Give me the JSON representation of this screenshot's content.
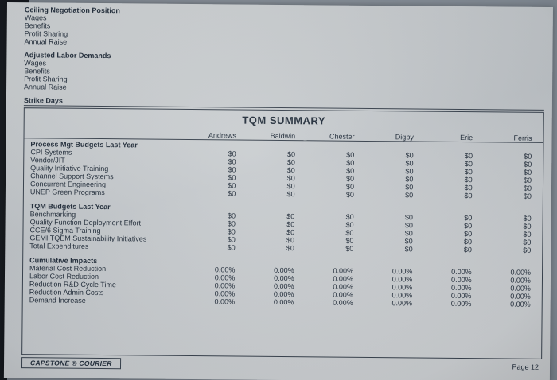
{
  "page": {
    "top": {
      "groups": [
        {
          "title": "Ceiling Negotiation Position",
          "items": [
            "Wages",
            "Benefits",
            "Profit Sharing",
            "Annual Raise"
          ]
        },
        {
          "title": "Adjusted Labor Demands",
          "items": [
            "Wages",
            "Benefits",
            "Profit Sharing",
            "Annual Raise"
          ]
        }
      ],
      "strike_days": "Strike Days"
    },
    "report": {
      "title": "TQM SUMMARY",
      "companies": [
        "Andrews",
        "Baldwin",
        "Chester",
        "Digby",
        "Erie",
        "Ferris"
      ],
      "sections": [
        {
          "heading": "Process Mgt Budgets Last Year",
          "rows": [
            {
              "label": "CPI Systems",
              "values": [
                "$0",
                "$0",
                "$0",
                "$0",
                "$0",
                "$0"
              ]
            },
            {
              "label": "Vendor/JIT",
              "values": [
                "$0",
                "$0",
                "$0",
                "$0",
                "$0",
                "$0"
              ]
            },
            {
              "label": "Quality Initiative Training",
              "values": [
                "$0",
                "$0",
                "$0",
                "$0",
                "$0",
                "$0"
              ]
            },
            {
              "label": "Channel Support Systems",
              "values": [
                "$0",
                "$0",
                "$0",
                "$0",
                "$0",
                "$0"
              ]
            },
            {
              "label": "Concurrent Engineering",
              "values": [
                "$0",
                "$0",
                "$0",
                "$0",
                "$0",
                "$0"
              ]
            },
            {
              "label": "UNEP Green Programs",
              "values": [
                "$0",
                "$0",
                "$0",
                "$0",
                "$0",
                "$0"
              ]
            }
          ]
        },
        {
          "heading": "TQM Budgets Last Year",
          "rows": [
            {
              "label": "Benchmarking",
              "values": [
                "$0",
                "$0",
                "$0",
                "$0",
                "$0",
                "$0"
              ]
            },
            {
              "label": "Quality Function Deployment Effort",
              "values": [
                "$0",
                "$0",
                "$0",
                "$0",
                "$0",
                "$0"
              ]
            },
            {
              "label": "CCE/6 Sigma Training",
              "values": [
                "$0",
                "$0",
                "$0",
                "$0",
                "$0",
                "$0"
              ]
            },
            {
              "label": "GEMI TQEM Sustainability Initiatives",
              "values": [
                "$0",
                "$0",
                "$0",
                "$0",
                "$0",
                "$0"
              ]
            },
            {
              "label": "Total Expenditures",
              "values": [
                "$0",
                "$0",
                "$0",
                "$0",
                "$0",
                "$0"
              ]
            }
          ]
        },
        {
          "heading": "Cumulative Impacts",
          "rows": [
            {
              "label": "Material Cost Reduction",
              "values": [
                "0.00%",
                "0.00%",
                "0.00%",
                "0.00%",
                "0.00%",
                "0.00%"
              ]
            },
            {
              "label": "Labor Cost Reduction",
              "values": [
                "0.00%",
                "0.00%",
                "0.00%",
                "0.00%",
                "0.00%",
                "0.00%"
              ]
            },
            {
              "label": "Reduction R&D Cycle Time",
              "values": [
                "0.00%",
                "0.00%",
                "0.00%",
                "0.00%",
                "0.00%",
                "0.00%"
              ]
            },
            {
              "label": "Reduction Admin Costs",
              "values": [
                "0.00%",
                "0.00%",
                "0.00%",
                "0.00%",
                "0.00%",
                "0.00%"
              ]
            },
            {
              "label": "Demand Increase",
              "values": [
                "0.00%",
                "0.00%",
                "0.00%",
                "0.00%",
                "0.00%",
                "0.00%"
              ]
            }
          ]
        }
      ]
    },
    "footer": {
      "brand": "CAPSTONE ® COURIER",
      "page": "Page 12"
    }
  }
}
